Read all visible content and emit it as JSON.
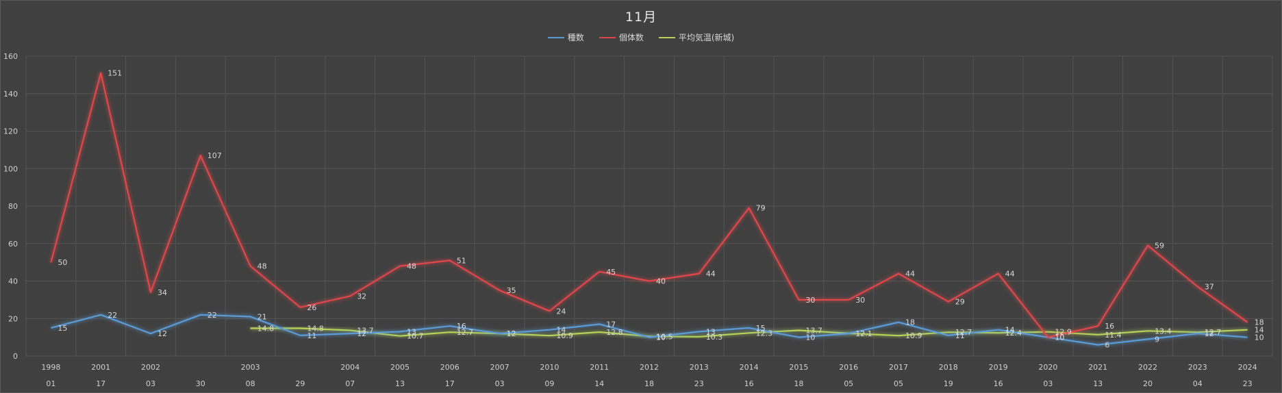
{
  "chart_data": {
    "type": "line",
    "title": "11月",
    "categories": [
      [
        "1998",
        "01"
      ],
      [
        "2001",
        "17"
      ],
      [
        "2002",
        "03"
      ],
      [
        "",
        "30"
      ],
      [
        "2003",
        "08"
      ],
      [
        "",
        "29"
      ],
      [
        "2004",
        "07"
      ],
      [
        "2005",
        "13"
      ],
      [
        "2006",
        "17"
      ],
      [
        "2007",
        "03"
      ],
      [
        "2010",
        "09"
      ],
      [
        "2011",
        "14"
      ],
      [
        "2012",
        "18"
      ],
      [
        "2013",
        "23"
      ],
      [
        "2014",
        "16"
      ],
      [
        "2015",
        "18"
      ],
      [
        "2016",
        "05"
      ],
      [
        "2017",
        "05"
      ],
      [
        "2018",
        "19"
      ],
      [
        "2019",
        "16"
      ],
      [
        "2020",
        "03"
      ],
      [
        "2021",
        "13"
      ],
      [
        "2022",
        "20"
      ],
      [
        "2023",
        "04"
      ],
      [
        "2024",
        "23"
      ]
    ],
    "series": [
      {
        "name": "種数",
        "color": "#5b9bd5",
        "values": [
          15,
          22,
          12,
          22,
          21,
          11,
          12,
          13,
          16,
          12,
          14,
          17,
          10,
          13,
          15,
          10,
          12,
          18,
          11,
          14,
          10,
          6,
          9,
          12,
          10
        ]
      },
      {
        "name": "個体数",
        "color": "#e0474c",
        "values": [
          50,
          151,
          34,
          107,
          48,
          26,
          32,
          48,
          51,
          35,
          24,
          45,
          40,
          44,
          79,
          30,
          30,
          44,
          29,
          44,
          10,
          16,
          59,
          37,
          18
        ]
      },
      {
        "name": "平均気温(新城)",
        "color": "#b6d25a",
        "values": [
          null,
          null,
          null,
          null,
          14.8,
          14.8,
          13.7,
          10.7,
          12.7,
          12,
          10.9,
          12.8,
          10.5,
          10.3,
          12.3,
          13.7,
          12.1,
          10.9,
          12.7,
          12.4,
          12.9,
          11.4,
          13.4,
          12.7,
          14
        ]
      }
    ],
    "ylim": [
      0,
      160
    ],
    "yticks": [
      0,
      20,
      40,
      60,
      80,
      100,
      120,
      140,
      160
    ],
    "grid": true,
    "legend": "top-center"
  }
}
